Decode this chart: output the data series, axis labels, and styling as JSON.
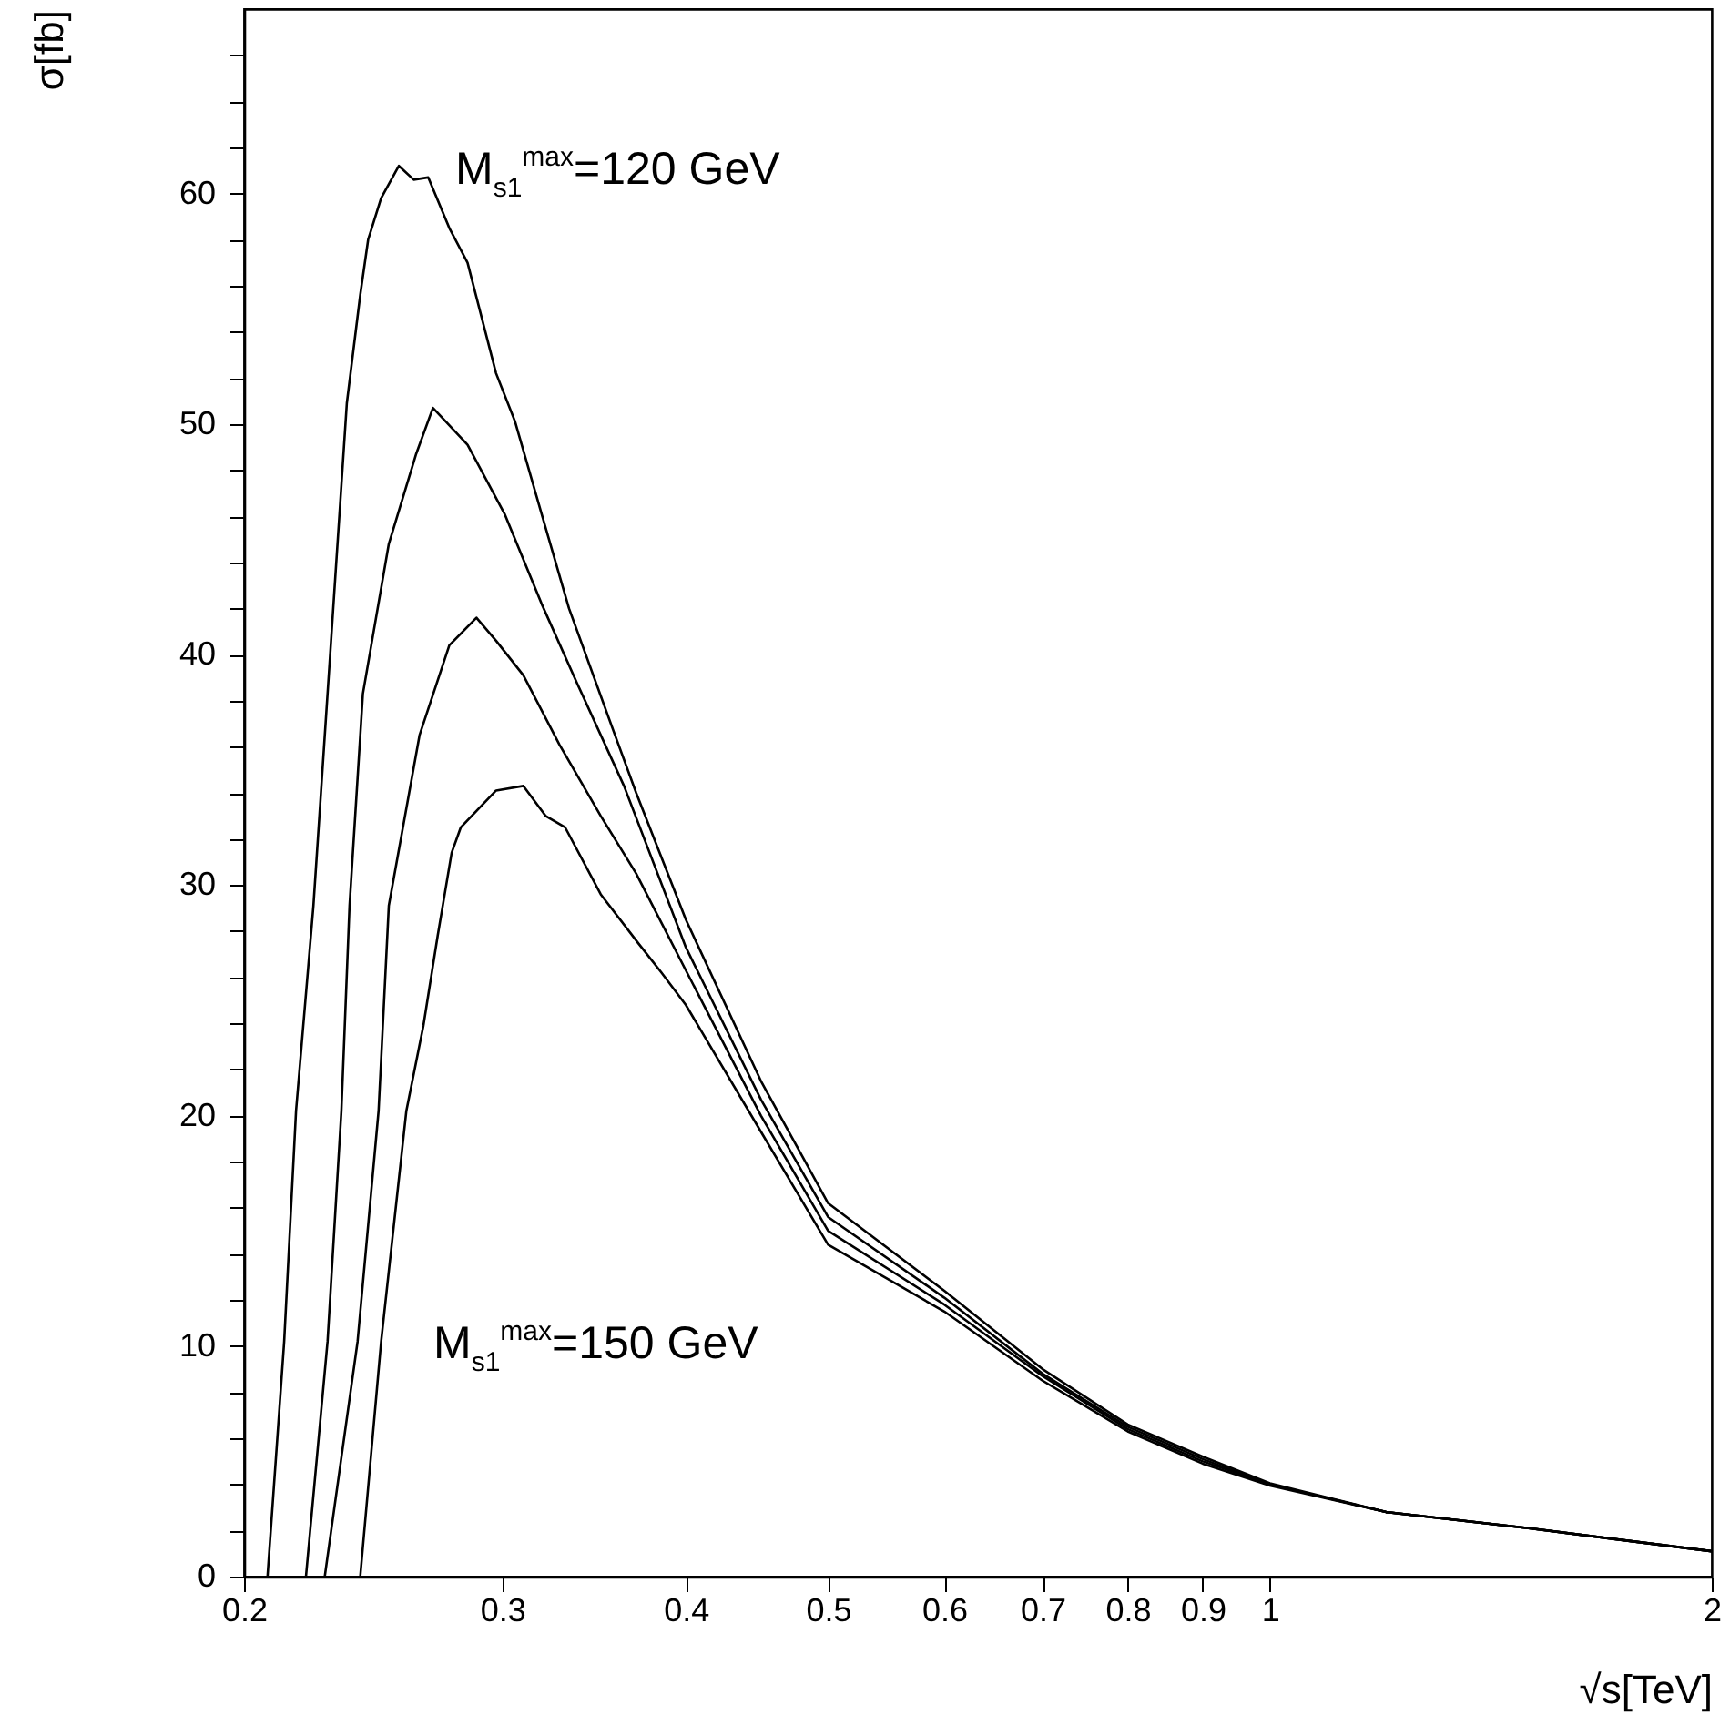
{
  "chart_data": {
    "type": "line",
    "xlabel": "√s[TeV]",
    "ylabel": "σ[fb]",
    "log": "x",
    "xlim": [
      0.2,
      2
    ],
    "ylim": [
      0,
      68
    ],
    "xticks": [
      0.2,
      0.3,
      0.4,
      0.5,
      0.6,
      0.7,
      0.8,
      0.9,
      1,
      2
    ],
    "yticks": [
      0,
      {
        "value": 2,
        "label": null
      },
      {
        "value": 4,
        "label": null
      },
      {
        "value": 6,
        "label": null
      },
      {
        "value": 8,
        "label": null
      },
      10,
      {
        "value": 12,
        "label": null
      },
      {
        "value": 14,
        "label": null
      },
      {
        "value": 16,
        "label": null
      },
      {
        "value": 18,
        "label": null
      },
      20,
      {
        "value": 22,
        "label": null
      },
      {
        "value": 24,
        "label": null
      },
      {
        "value": 26,
        "label": null
      },
      {
        "value": 28,
        "label": null
      },
      30,
      {
        "value": 32,
        "label": null
      },
      {
        "value": 34,
        "label": null
      },
      {
        "value": 36,
        "label": null
      },
      {
        "value": 38,
        "label": null
      },
      40,
      {
        "value": 42,
        "label": null
      },
      {
        "value": 44,
        "label": null
      },
      {
        "value": 46,
        "label": null
      },
      {
        "value": 48,
        "label": null
      },
      50,
      {
        "value": 52,
        "label": null
      },
      {
        "value": 54,
        "label": null
      },
      {
        "value": 56,
        "label": null
      },
      {
        "value": 58,
        "label": null
      },
      60,
      {
        "value": 62,
        "label": null
      },
      {
        "value": 64,
        "label": null
      },
      {
        "value": 66,
        "label": null
      }
    ],
    "annotations": [
      "M$_{s1}$$^{max}$=120 GeV",
      "M$_{s1}$$^{max}$=150 GeV"
    ],
    "series": [
      {
        "color": "#000000",
        "x": [
          0.2075,
          0.213,
          0.217,
          0.223,
          0.228,
          0.235,
          0.24,
          0.243,
          0.248,
          0.255,
          0.261,
          0.267,
          0.276,
          0.284,
          0.297,
          0.306,
          0.319,
          0.333,
          0.357,
          0.37,
          0.4,
          0.45,
          0.5,
          0.6,
          0.7,
          0.8,
          0.9,
          1,
          1.2,
          1.5,
          2
        ],
        "values": [
          0,
          10.2,
          20.2,
          29.1,
          38.3,
          50.9,
          55.6,
          58.0,
          59.8,
          61.2,
          60.6,
          60.7,
          58.5,
          57.0,
          52.2,
          50.1,
          46.1,
          42.0,
          36.7,
          34.0,
          28.5,
          21.5,
          16.2,
          12.4,
          9.0,
          6.6,
          5.2,
          4.05,
          2.8,
          2.1,
          1.1
        ]
      },
      {
        "color": "#000000",
        "x": [
          0.2204,
          0.228,
          0.233,
          0.236,
          0.241,
          0.251,
          0.262,
          0.269,
          0.284,
          0.301,
          0.319,
          0.337,
          0.363,
          0.4,
          0.45,
          0.5,
          0.6,
          0.7,
          0.8,
          0.9,
          1,
          1.2,
          1.5,
          2
        ],
        "values": [
          0,
          10.2,
          20.2,
          29.1,
          38.3,
          44.8,
          48.7,
          50.7,
          49.1,
          46.1,
          42.2,
          38.8,
          34.3,
          27.3,
          20.7,
          15.6,
          12.1,
          8.8,
          6.5,
          5.1,
          4.0,
          2.8,
          2.1,
          1.1
        ]
      },
      {
        "color": "#000000",
        "x": [
          0.227,
          0.239,
          0.247,
          0.251,
          0.2634,
          0.276,
          0.288,
          0.297,
          0.31,
          0.328,
          0.35,
          0.37,
          0.4,
          0.45,
          0.5,
          0.6,
          0.7,
          0.8,
          0.9,
          1,
          1.2,
          1.5,
          2
        ],
        "values": [
          0,
          10.2,
          20.2,
          29.1,
          36.5,
          40.4,
          41.6,
          40.6,
          39.1,
          36.1,
          33.0,
          30.5,
          26.3,
          20.0,
          15.0,
          11.8,
          8.7,
          6.4,
          5.0,
          4.0,
          2.8,
          2.1,
          1.1
        ]
      },
      {
        "color": "#000000",
        "x": [
          0.24,
          0.248,
          0.258,
          0.265,
          0.271,
          0.277,
          0.281,
          0.297,
          0.31,
          0.321,
          0.331,
          0.35,
          0.371,
          0.385,
          0.4,
          0.45,
          0.5,
          0.6,
          0.7,
          0.8,
          0.9,
          1,
          1.2,
          1.5,
          2
        ],
        "values": [
          0,
          10.2,
          20.2,
          23.9,
          27.8,
          31.4,
          32.5,
          34.1,
          34.3,
          33.0,
          32.5,
          29.6,
          27.5,
          26.2,
          24.8,
          19.3,
          14.4,
          11.5,
          8.5,
          6.3,
          4.9,
          3.95,
          2.8,
          2.1,
          1.1
        ]
      }
    ]
  }
}
